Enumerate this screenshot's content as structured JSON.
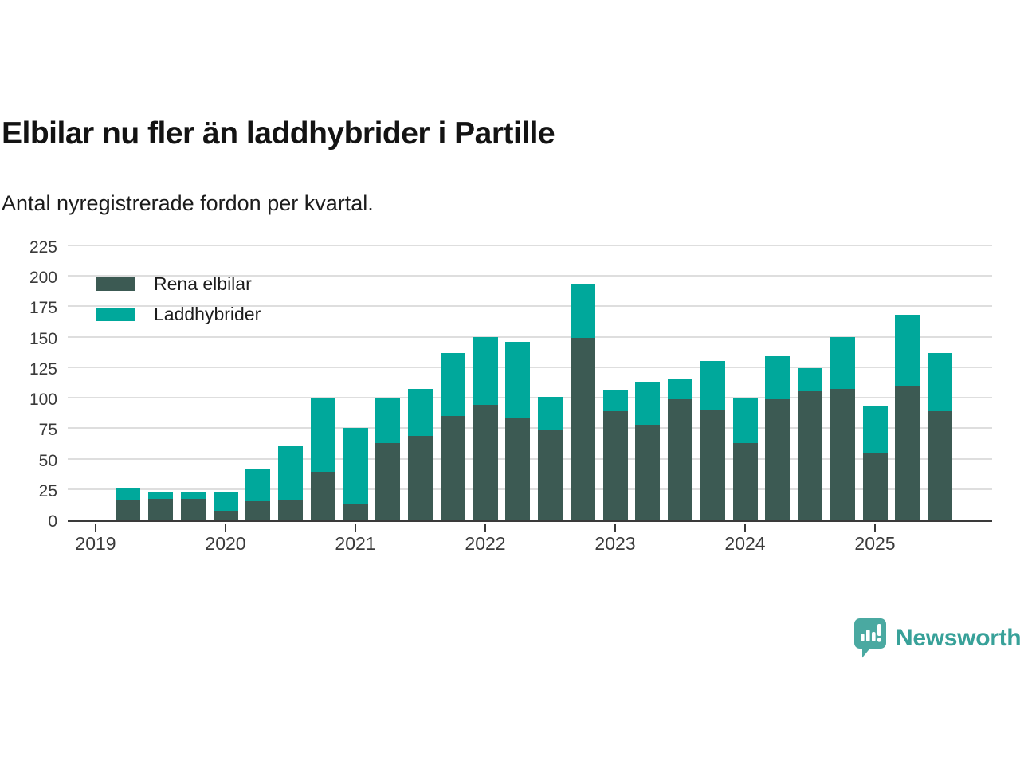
{
  "page": {
    "title": "Elbilar nu fler än laddhybrider i Partille",
    "subtitle": "Antal nyregistrerade fordon per kvartal."
  },
  "branding": {
    "logo_text": "Newsworthy",
    "logo_icon": "speech-bubble-bar-chart",
    "logo_color": "#4aa9a1",
    "logo_text_color": "#38a199"
  },
  "colors": {
    "rena_elbilar": "#3c5a53",
    "laddhybrider": "#00a89b",
    "grid": "#dedede",
    "axis": "#3a3a3a",
    "text": "#1c1c1c"
  },
  "chart_data": {
    "type": "bar",
    "stacked": true,
    "title": "Elbilar nu fler än laddhybrider i Partille",
    "subtitle": "Antal nyregistrerade fordon per kvartal.",
    "xlabel": "",
    "ylabel": "",
    "ylim": [
      0,
      225
    ],
    "yticks": [
      0,
      25,
      50,
      75,
      100,
      125,
      150,
      175,
      200,
      225
    ],
    "xticks": [
      "2019",
      "2020",
      "2021",
      "2022",
      "2023",
      "2024",
      "2025"
    ],
    "grid": true,
    "legend_position": "inside-top-left",
    "x": [
      "2019-Q2",
      "2019-Q3",
      "2019-Q4",
      "2020-Q1",
      "2020-Q2",
      "2020-Q3",
      "2020-Q4",
      "2021-Q1",
      "2021-Q2",
      "2021-Q3",
      "2021-Q4",
      "2022-Q1",
      "2022-Q2",
      "2022-Q3",
      "2022-Q4",
      "2023-Q1",
      "2023-Q2",
      "2023-Q3",
      "2023-Q4",
      "2024-Q1",
      "2024-Q2",
      "2024-Q3",
      "2024-Q4",
      "2025-Q1",
      "2025-Q2",
      "2025-Q3"
    ],
    "series": [
      {
        "name": "Rena elbilar",
        "color": "#3c5a53",
        "values": [
          16,
          17,
          17,
          7,
          15,
          16,
          39,
          13,
          63,
          69,
          85,
          94,
          83,
          73,
          149,
          89,
          78,
          99,
          90,
          63,
          99,
          105,
          107,
          55,
          110,
          89
        ]
      },
      {
        "name": "Laddhybrider",
        "color": "#00a89b",
        "values": [
          10,
          6,
          6,
          16,
          26,
          44,
          61,
          62,
          37,
          38,
          52,
          56,
          63,
          28,
          44,
          17,
          35,
          17,
          40,
          37,
          35,
          19,
          43,
          38,
          58,
          48
        ]
      }
    ],
    "totals": [
      26,
      23,
      23,
      23,
      41,
      60,
      100,
      75,
      100,
      107,
      137,
      150,
      146,
      101,
      193,
      106,
      113,
      116,
      130,
      100,
      134,
      124,
      150,
      93,
      168,
      137
    ]
  }
}
